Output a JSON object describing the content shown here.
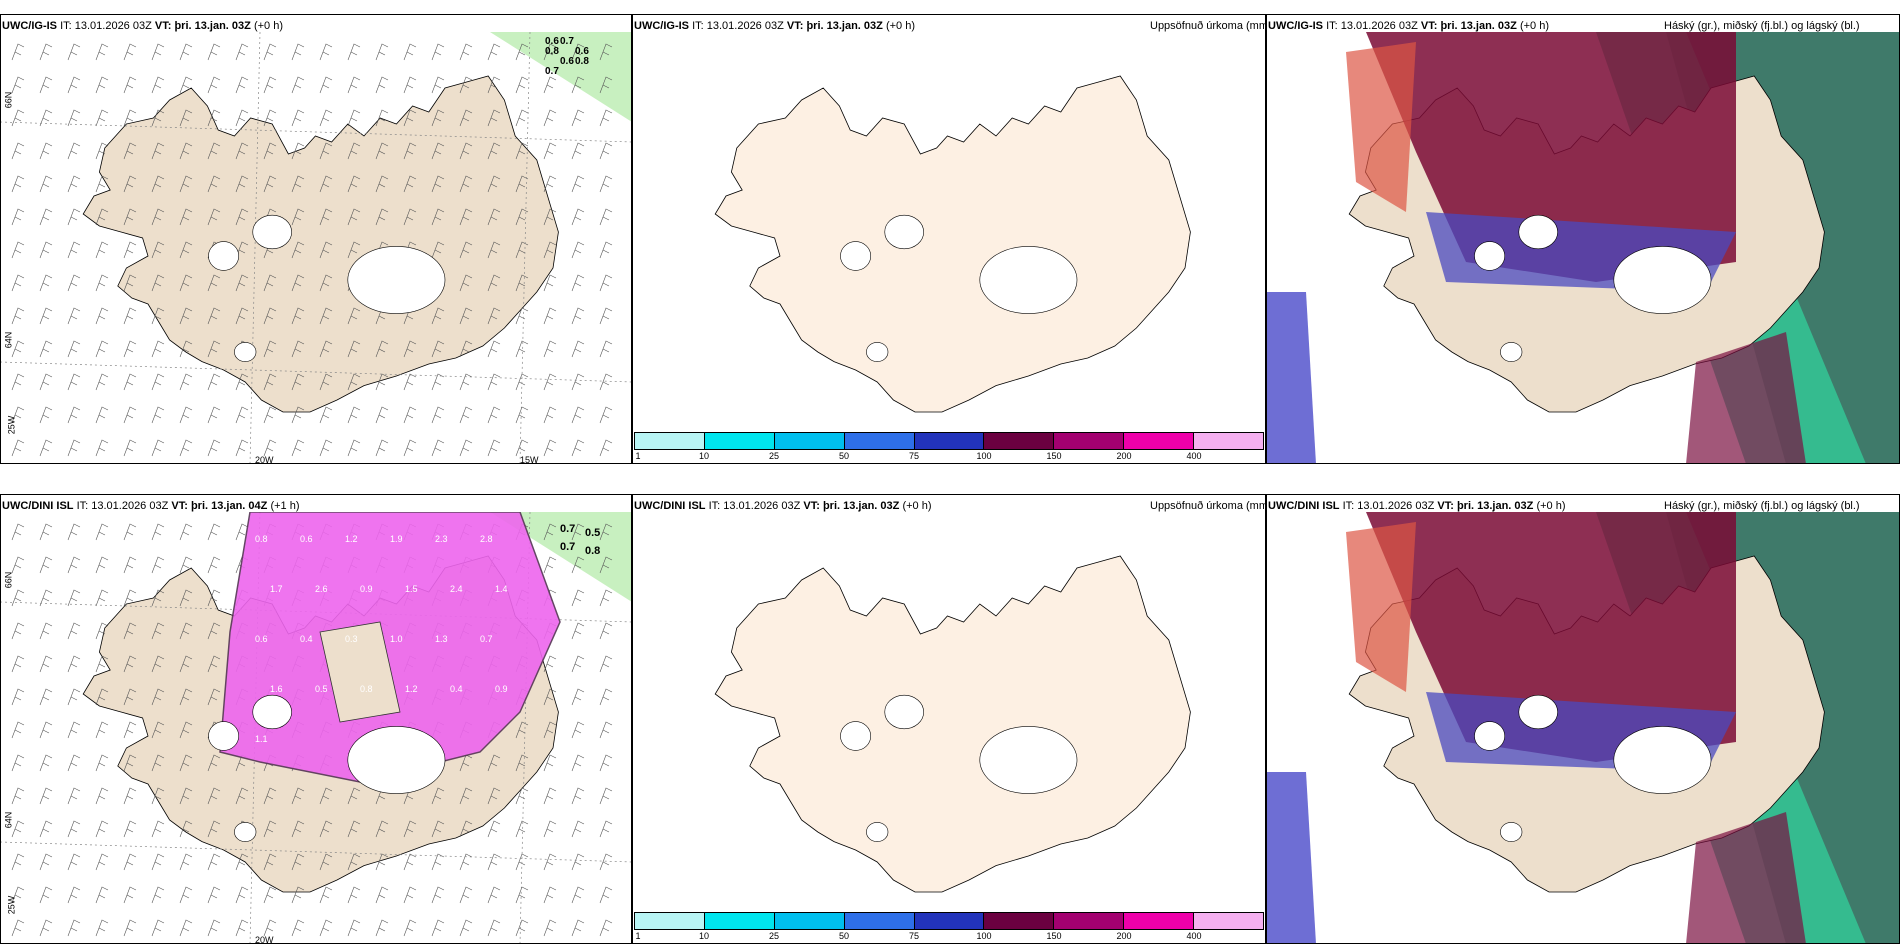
{
  "panels": [
    {
      "id": "p1",
      "model": "UWC/IG-IS",
      "it_label": "IT:",
      "it_value": "13.01.2026 03Z",
      "vt_label": "VT:",
      "vt_value": "þri. 13.jan. 03Z",
      "offset": "(+0 h)",
      "right_title": ""
    },
    {
      "id": "p2",
      "model": "UWC/IG-IS",
      "it_label": "IT:",
      "it_value": "13.01.2026 03Z",
      "vt_label": "VT:",
      "vt_value": "þri. 13.jan. 03Z",
      "offset": "(+0 h)",
      "right_title": "Uppsöfnuð úrkoma (mm)"
    },
    {
      "id": "p3",
      "model": "UWC/IG-IS",
      "it_label": "IT:",
      "it_value": "13.01.2026 03Z",
      "vt_label": "VT:",
      "vt_value": "þri. 13.jan. 03Z",
      "offset": "(+0 h)",
      "right_title": "Háský (gr.), miðský (fj.bl.) og lágský (bl.)"
    },
    {
      "id": "p4",
      "model": "UWC/DINI ISL",
      "it_label": "IT:",
      "it_value": "13.01.2026 03Z",
      "vt_label": "VT:",
      "vt_value": "þri. 13.jan. 04Z",
      "offset": "(+1 h)",
      "right_title": ""
    },
    {
      "id": "p5",
      "model": "UWC/DINI ISL",
      "it_label": "IT:",
      "it_value": "13.01.2026 03Z",
      "vt_label": "VT:",
      "vt_value": "þri. 13.jan. 03Z",
      "offset": "(+0 h)",
      "right_title": "Uppsöfnuð úrkoma (mm)"
    },
    {
      "id": "p6",
      "model": "UWC/DINI ISL",
      "it_label": "IT:",
      "it_value": "13.01.2026 03Z",
      "vt_label": "VT:",
      "vt_value": "þri. 13.jan. 03Z",
      "offset": "(+0 h)",
      "right_title": "Háský (gr.), miðský (fj.bl.) og lágský (bl.)"
    }
  ],
  "axis_labels": {
    "lon_20w": "20W",
    "lon_15w": "15W",
    "lon_25w": "25W",
    "lat_66n": "66N",
    "lat_64n": "64N"
  },
  "colorbar": {
    "ticks": [
      "1",
      "10",
      "25",
      "50",
      "75",
      "100",
      "150",
      "200",
      "400"
    ],
    "colors": [
      "#b8f5f5",
      "#00e5ee",
      "#00bfee",
      "#2e6fe8",
      "#2233bb",
      "#6b0040",
      "#a30070",
      "#ee00aa",
      "#f5b0f0"
    ]
  },
  "wind_labels_p1": [
    "0.6",
    "0.7",
    "0.6",
    "0.8",
    "0.6",
    "0.8",
    "0.7"
  ],
  "wind_labels_p4": [
    "0.7",
    "0.5",
    "0.7",
    "0.8"
  ],
  "precip_labels_p4": [
    "0.8",
    "0.6",
    "1.2",
    "1.9",
    "2.3",
    "2.8",
    "1.7",
    "2.6",
    "0.9",
    "1.5",
    "2.4",
    "1.4",
    "0.6",
    "0.4",
    "0.3",
    "1.0",
    "1.3",
    "0.7",
    "1.6",
    "0.5",
    "0.8",
    "1.2",
    "0.4",
    "0.9",
    "1.1"
  ],
  "colors": {
    "land": "#eddfcc",
    "land_light": "#fdf0e3",
    "sea": "#ffffff",
    "wind_green": "#c8f0c0"
  }
}
